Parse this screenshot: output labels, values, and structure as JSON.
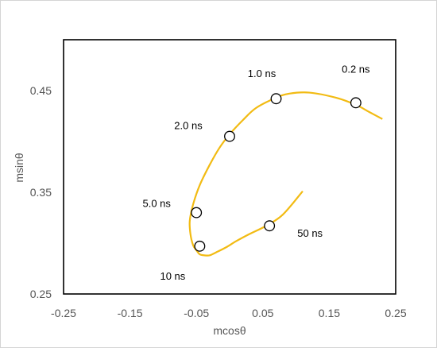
{
  "chart_data": {
    "type": "line",
    "title": "",
    "xlabel": "mcosθ",
    "ylabel": "msinθ",
    "xlim": [
      -0.25,
      0.25
    ],
    "ylim": [
      0.25,
      0.45
    ],
    "yplot_max": 0.5,
    "x_ticks": [
      "-0.25",
      "-0.15",
      "-0.05",
      "0.05",
      "0.15",
      "0.25"
    ],
    "x_tick_values": [
      -0.25,
      -0.15,
      -0.05,
      0.05,
      0.15,
      0.25
    ],
    "y_ticks": [
      "0.25",
      "0.35",
      "0.45"
    ],
    "y_tick_values": [
      0.25,
      0.35,
      0.45
    ],
    "grid": false,
    "line_color": "#f2bb13",
    "series": [
      {
        "x": [
          0.23,
          0.21,
          0.19,
          0.16,
          0.12,
          0.09,
          0.07,
          0.04,
          0.02,
          0.0,
          -0.015,
          -0.03,
          -0.045,
          -0.055,
          -0.06,
          -0.059,
          -0.055,
          -0.05,
          -0.045,
          -0.038,
          -0.03,
          -0.02,
          -0.005,
          0.01,
          0.03,
          0.055,
          0.08,
          0.11
        ],
        "y": [
          0.422,
          0.429,
          0.436,
          0.443,
          0.448,
          0.447,
          0.443,
          0.433,
          0.421,
          0.407,
          0.394,
          0.377,
          0.357,
          0.338,
          0.322,
          0.309,
          0.298,
          0.293,
          0.289,
          0.288,
          0.288,
          0.291,
          0.296,
          0.302,
          0.309,
          0.317,
          0.328,
          0.351
        ]
      }
    ],
    "markers": [
      {
        "x": 0.19,
        "y": 0.438,
        "label": "0.2 ns"
      },
      {
        "x": 0.07,
        "y": 0.442,
        "label": "1.0 ns"
      },
      {
        "x": 0.0,
        "y": 0.405,
        "label": "2.0 ns"
      },
      {
        "x": -0.05,
        "y": 0.33,
        "label": "5.0 ns"
      },
      {
        "x": -0.045,
        "y": 0.297,
        "label": "10 ns"
      },
      {
        "x": 0.06,
        "y": 0.317,
        "label": "50 ns"
      }
    ]
  }
}
